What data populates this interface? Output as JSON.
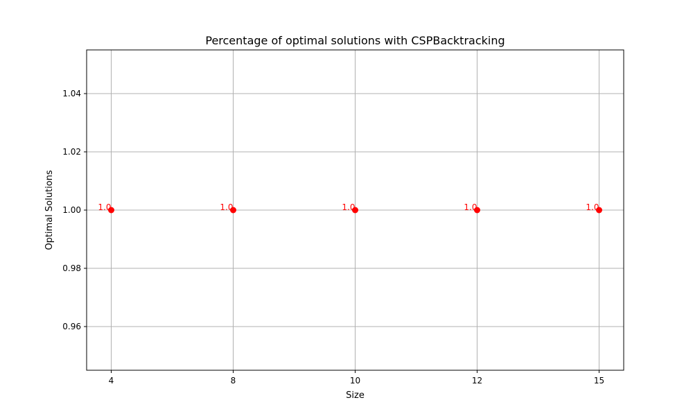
{
  "chart_data": {
    "type": "scatter",
    "title": "Percentage of optimal solutions with CSPBacktracking",
    "xlabel": "Size",
    "ylabel": "Optimal Solutions",
    "categories": [
      "4",
      "8",
      "10",
      "12",
      "15"
    ],
    "values": [
      1.0,
      1.0,
      1.0,
      1.0,
      1.0
    ],
    "data_labels": [
      "1.0",
      "1.0",
      "1.0",
      "1.0",
      "1.0"
    ],
    "ylim": [
      0.945,
      1.055
    ],
    "yticks": [
      0.96,
      0.98,
      1.0,
      1.02,
      1.04
    ],
    "ytick_labels": [
      "0.96",
      "0.98",
      "1.00",
      "1.02",
      "1.04"
    ],
    "grid": true,
    "marker_color": "#ff0000",
    "label_color": "#ff0000",
    "grid_color": "#b0b0b0"
  }
}
